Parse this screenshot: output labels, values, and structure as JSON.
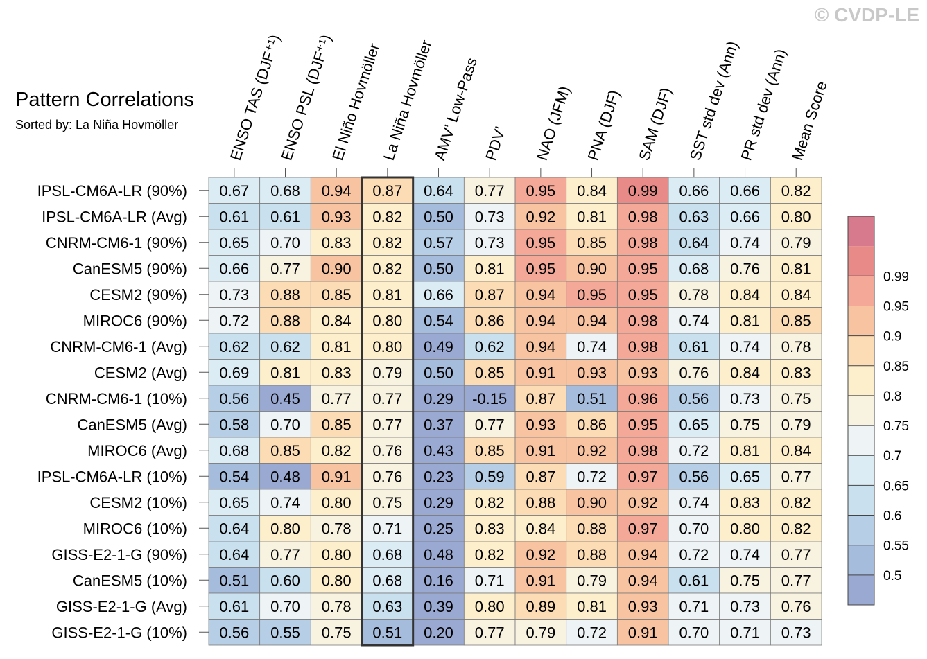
{
  "title": "Pattern Correlations",
  "subtitle": "Sorted by: La Niña Hovmöller",
  "watermark": "© CVDP-LE",
  "chart_data": {
    "type": "heatmap",
    "title": "Pattern Correlations",
    "subtitle": "Sorted by: La Niña Hovmöller",
    "columns": [
      "ENSO TAS (DJF⁺¹)",
      "ENSO PSL (DJF⁺¹)",
      "El Niño Hovmöller",
      "La Niña Hovmöller",
      "AMV’ Low-Pass",
      "PDV’",
      "NAO (JFM)",
      "PNA (DJF)",
      "SAM (DJF)",
      "SST std dev (Ann)",
      "PR std dev (Ann)",
      "Mean Score"
    ],
    "highlighted_column": "La Niña Hovmöller",
    "rows": [
      {
        "label": "IPSL-CM6A-LR (90%)",
        "values": [
          "0.67",
          "0.68",
          "0.94",
          "0.87",
          "0.64",
          "0.77",
          "0.95",
          "0.84",
          "0.99",
          "0.66",
          "0.66",
          "0.82"
        ]
      },
      {
        "label": "IPSL-CM6A-LR (Avg)",
        "values": [
          "0.61",
          "0.61",
          "0.93",
          "0.82",
          "0.50",
          "0.73",
          "0.92",
          "0.81",
          "0.98",
          "0.63",
          "0.66",
          "0.80"
        ]
      },
      {
        "label": "CNRM-CM6-1 (90%)",
        "values": [
          "0.65",
          "0.70",
          "0.83",
          "0.82",
          "0.57",
          "0.73",
          "0.95",
          "0.85",
          "0.98",
          "0.64",
          "0.74",
          "0.79"
        ]
      },
      {
        "label": "CanESM5 (90%)",
        "values": [
          "0.66",
          "0.77",
          "0.90",
          "0.82",
          "0.50",
          "0.81",
          "0.95",
          "0.90",
          "0.95",
          "0.68",
          "0.76",
          "0.81"
        ]
      },
      {
        "label": "CESM2 (90%)",
        "values": [
          "0.73",
          "0.88",
          "0.85",
          "0.81",
          "0.66",
          "0.87",
          "0.94",
          "0.95",
          "0.95",
          "0.78",
          "0.84",
          "0.84"
        ]
      },
      {
        "label": "MIROC6 (90%)",
        "values": [
          "0.72",
          "0.88",
          "0.84",
          "0.80",
          "0.54",
          "0.86",
          "0.94",
          "0.94",
          "0.98",
          "0.74",
          "0.81",
          "0.85"
        ]
      },
      {
        "label": "CNRM-CM6-1 (Avg)",
        "values": [
          "0.62",
          "0.62",
          "0.81",
          "0.80",
          "0.49",
          "0.62",
          "0.94",
          "0.74",
          "0.98",
          "0.61",
          "0.74",
          "0.78"
        ]
      },
      {
        "label": "CESM2 (Avg)",
        "values": [
          "0.69",
          "0.81",
          "0.83",
          "0.79",
          "0.50",
          "0.85",
          "0.91",
          "0.93",
          "0.93",
          "0.76",
          "0.84",
          "0.83"
        ]
      },
      {
        "label": "CNRM-CM6-1 (10%)",
        "values": [
          "0.56",
          "0.45",
          "0.77",
          "0.77",
          "0.29",
          "-0.15",
          "0.87",
          "0.51",
          "0.96",
          "0.56",
          "0.73",
          "0.75"
        ]
      },
      {
        "label": "CanESM5 (Avg)",
        "values": [
          "0.58",
          "0.70",
          "0.85",
          "0.77",
          "0.37",
          "0.77",
          "0.93",
          "0.86",
          "0.95",
          "0.65",
          "0.75",
          "0.79"
        ]
      },
      {
        "label": "MIROC6 (Avg)",
        "values": [
          "0.68",
          "0.85",
          "0.82",
          "0.76",
          "0.43",
          "0.85",
          "0.91",
          "0.92",
          "0.98",
          "0.72",
          "0.81",
          "0.84"
        ]
      },
      {
        "label": "IPSL-CM6A-LR (10%)",
        "values": [
          "0.54",
          "0.48",
          "0.91",
          "0.76",
          "0.23",
          "0.59",
          "0.87",
          "0.72",
          "0.97",
          "0.56",
          "0.65",
          "0.77"
        ]
      },
      {
        "label": "CESM2 (10%)",
        "values": [
          "0.65",
          "0.74",
          "0.80",
          "0.75",
          "0.29",
          "0.82",
          "0.88",
          "0.90",
          "0.92",
          "0.74",
          "0.83",
          "0.82"
        ]
      },
      {
        "label": "MIROC6 (10%)",
        "values": [
          "0.64",
          "0.80",
          "0.78",
          "0.71",
          "0.25",
          "0.83",
          "0.84",
          "0.88",
          "0.97",
          "0.70",
          "0.80",
          "0.82"
        ]
      },
      {
        "label": "GISS-E2-1-G (90%)",
        "values": [
          "0.64",
          "0.77",
          "0.80",
          "0.68",
          "0.48",
          "0.82",
          "0.92",
          "0.88",
          "0.94",
          "0.72",
          "0.74",
          "0.77"
        ]
      },
      {
        "label": "CanESM5 (10%)",
        "values": [
          "0.51",
          "0.60",
          "0.80",
          "0.68",
          "0.16",
          "0.71",
          "0.91",
          "0.79",
          "0.94",
          "0.61",
          "0.75",
          "0.77"
        ]
      },
      {
        "label": "GISS-E2-1-G (Avg)",
        "values": [
          "0.61",
          "0.70",
          "0.78",
          "0.63",
          "0.39",
          "0.80",
          "0.89",
          "0.81",
          "0.93",
          "0.71",
          "0.73",
          "0.76"
        ]
      },
      {
        "label": "GISS-E2-1-G (10%)",
        "values": [
          "0.56",
          "0.55",
          "0.75",
          "0.51",
          "0.20",
          "0.77",
          "0.79",
          "0.72",
          "0.91",
          "0.70",
          "0.71",
          "0.73"
        ]
      }
    ],
    "colorbar": {
      "levels": [
        0.5,
        0.55,
        0.6,
        0.65,
        0.7,
        0.75,
        0.8,
        0.85,
        0.9,
        0.95,
        0.99
      ],
      "labels": [
        "0.5",
        "0.55",
        "0.6",
        "0.65",
        "0.7",
        "0.75",
        "0.8",
        "0.85",
        "0.9",
        "0.95",
        "0.99"
      ],
      "colors": [
        "#9aa9d2",
        "#a6bcdc",
        "#b6cfe6",
        "#c9e0ee",
        "#dcecf5",
        "#eef3f5",
        "#f8f3e0",
        "#fdefcc",
        "#fcdcb4",
        "#f8c3a0",
        "#f3a898",
        "#e88a87",
        "#d87a8e"
      ]
    }
  }
}
